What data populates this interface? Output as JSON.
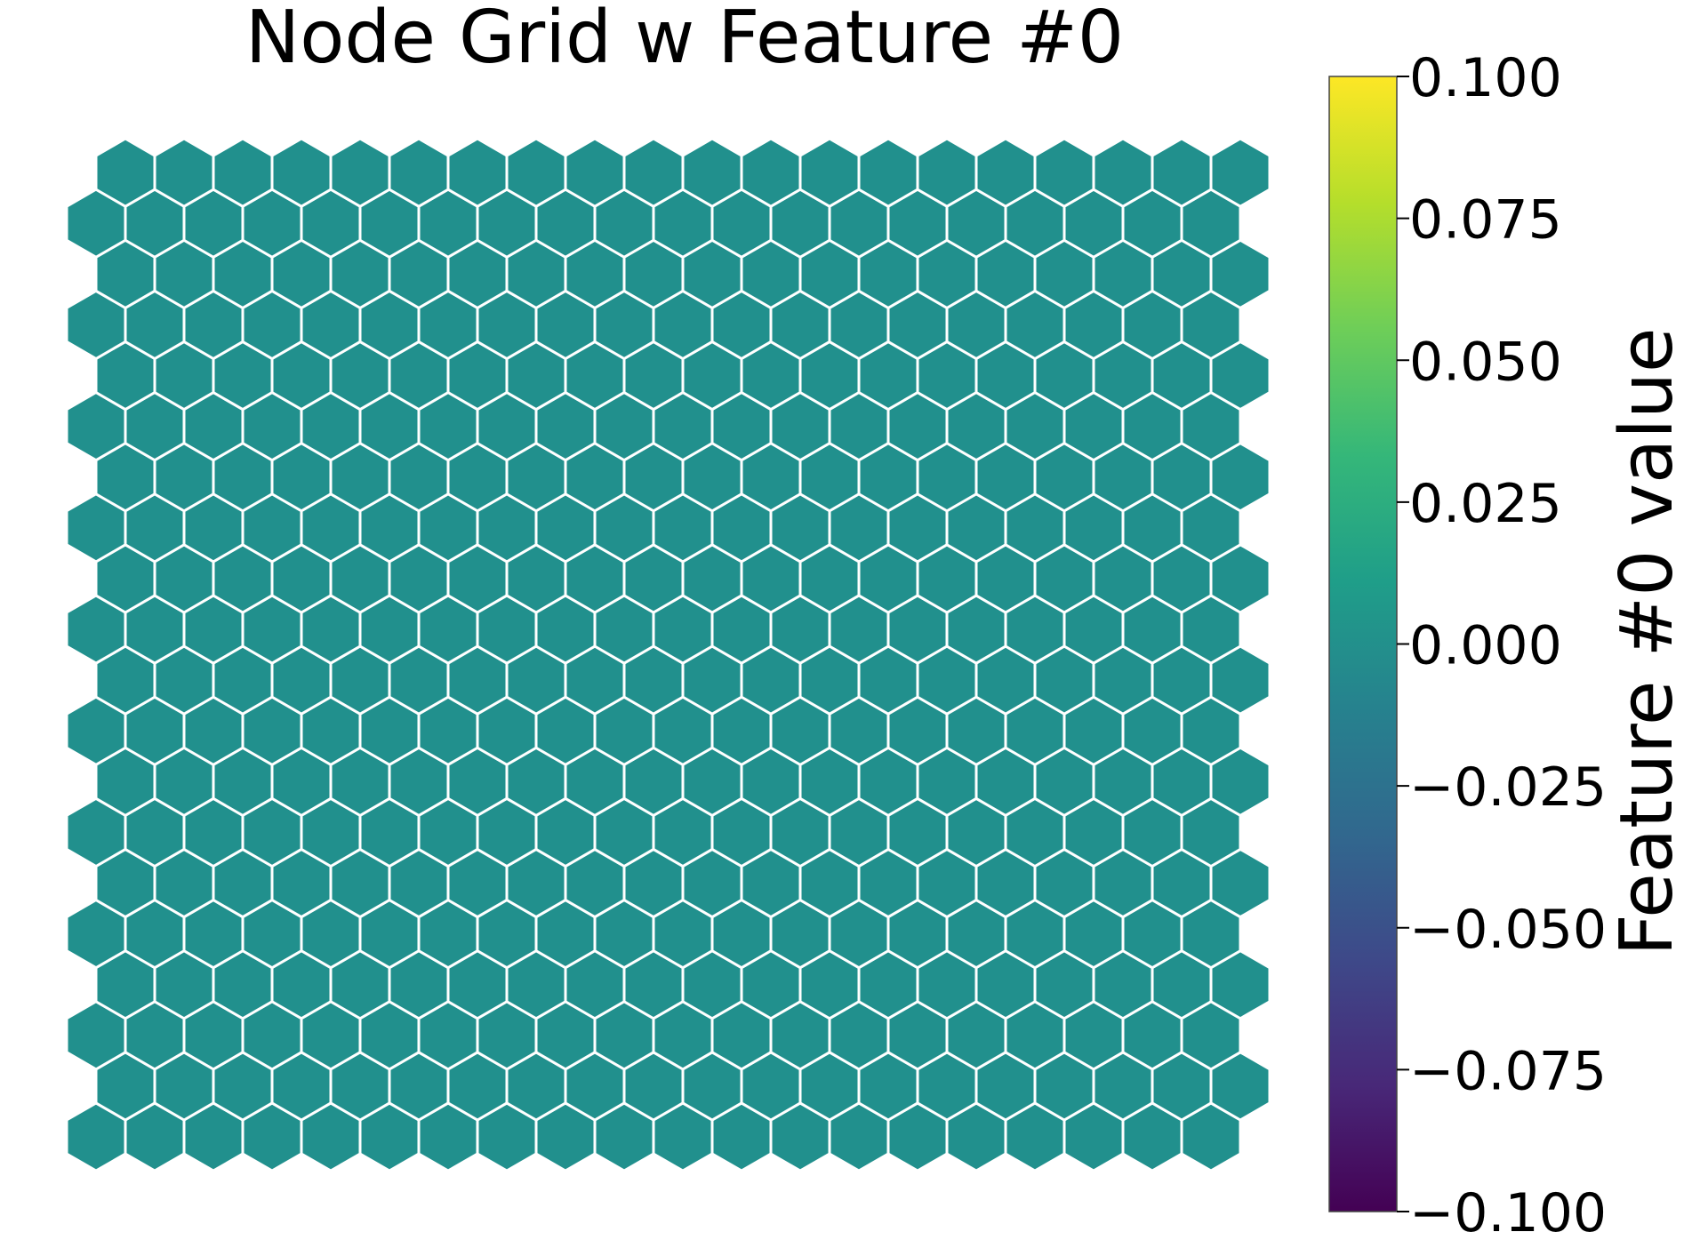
{
  "chart_data": {
    "type": "heatmap",
    "layout": "hexagonal",
    "title": "Node Grid w Feature #0",
    "grid": {
      "columns": 20,
      "rows": 20,
      "odd_rows_offset": "right"
    },
    "value": 0.0,
    "cell_color": "#21908d",
    "cell_edge_color": "#ffffff",
    "colorbar": {
      "label": "Feature #0 value",
      "colormap": "viridis",
      "range": [
        -0.1,
        0.1
      ],
      "ticks": [
        {
          "value": 0.1,
          "label": "0.100"
        },
        {
          "value": 0.075,
          "label": "0.075"
        },
        {
          "value": 0.05,
          "label": "0.050"
        },
        {
          "value": 0.025,
          "label": "0.025"
        },
        {
          "value": 0.0,
          "label": "0.000"
        },
        {
          "value": -0.025,
          "label": "−0.025"
        },
        {
          "value": -0.05,
          "label": "−0.050"
        },
        {
          "value": -0.075,
          "label": "−0.075"
        },
        {
          "value": -0.1,
          "label": "−0.100"
        }
      ],
      "stops": [
        "#440154",
        "#482878",
        "#3e4989",
        "#31688e",
        "#26828e",
        "#1f9e89",
        "#35b779",
        "#6ece58",
        "#b5de2b",
        "#fde725"
      ]
    },
    "legend": "none",
    "axes_visible": false
  }
}
